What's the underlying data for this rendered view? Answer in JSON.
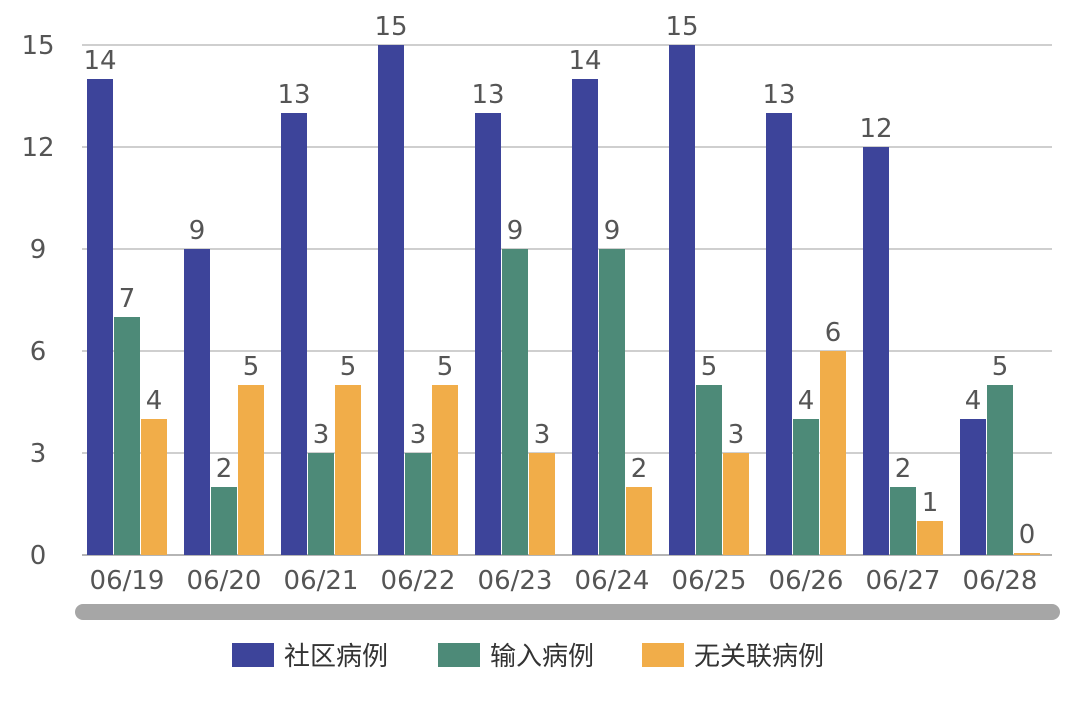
{
  "chart_data": {
    "type": "bar",
    "categories": [
      "06/19",
      "06/20",
      "06/21",
      "06/22",
      "06/23",
      "06/24",
      "06/25",
      "06/26",
      "06/27",
      "06/28"
    ],
    "series": [
      {
        "name": "社区病例",
        "color": "#3d449a",
        "values": [
          14,
          9,
          13,
          15,
          13,
          14,
          15,
          13,
          12,
          4
        ]
      },
      {
        "name": "输入病例",
        "color": "#4d8a78",
        "values": [
          7,
          2,
          3,
          3,
          9,
          9,
          5,
          4,
          2,
          5
        ]
      },
      {
        "name": "无关联病例",
        "color": "#f1ad49",
        "values": [
          4,
          5,
          5,
          5,
          3,
          2,
          3,
          6,
          1,
          0
        ]
      }
    ],
    "yticks": [
      0,
      3,
      6,
      9,
      12,
      15
    ],
    "ylim": [
      0,
      15
    ],
    "grid": true,
    "legend_position": "bottom",
    "title": "",
    "xlabel": "",
    "ylabel": ""
  }
}
